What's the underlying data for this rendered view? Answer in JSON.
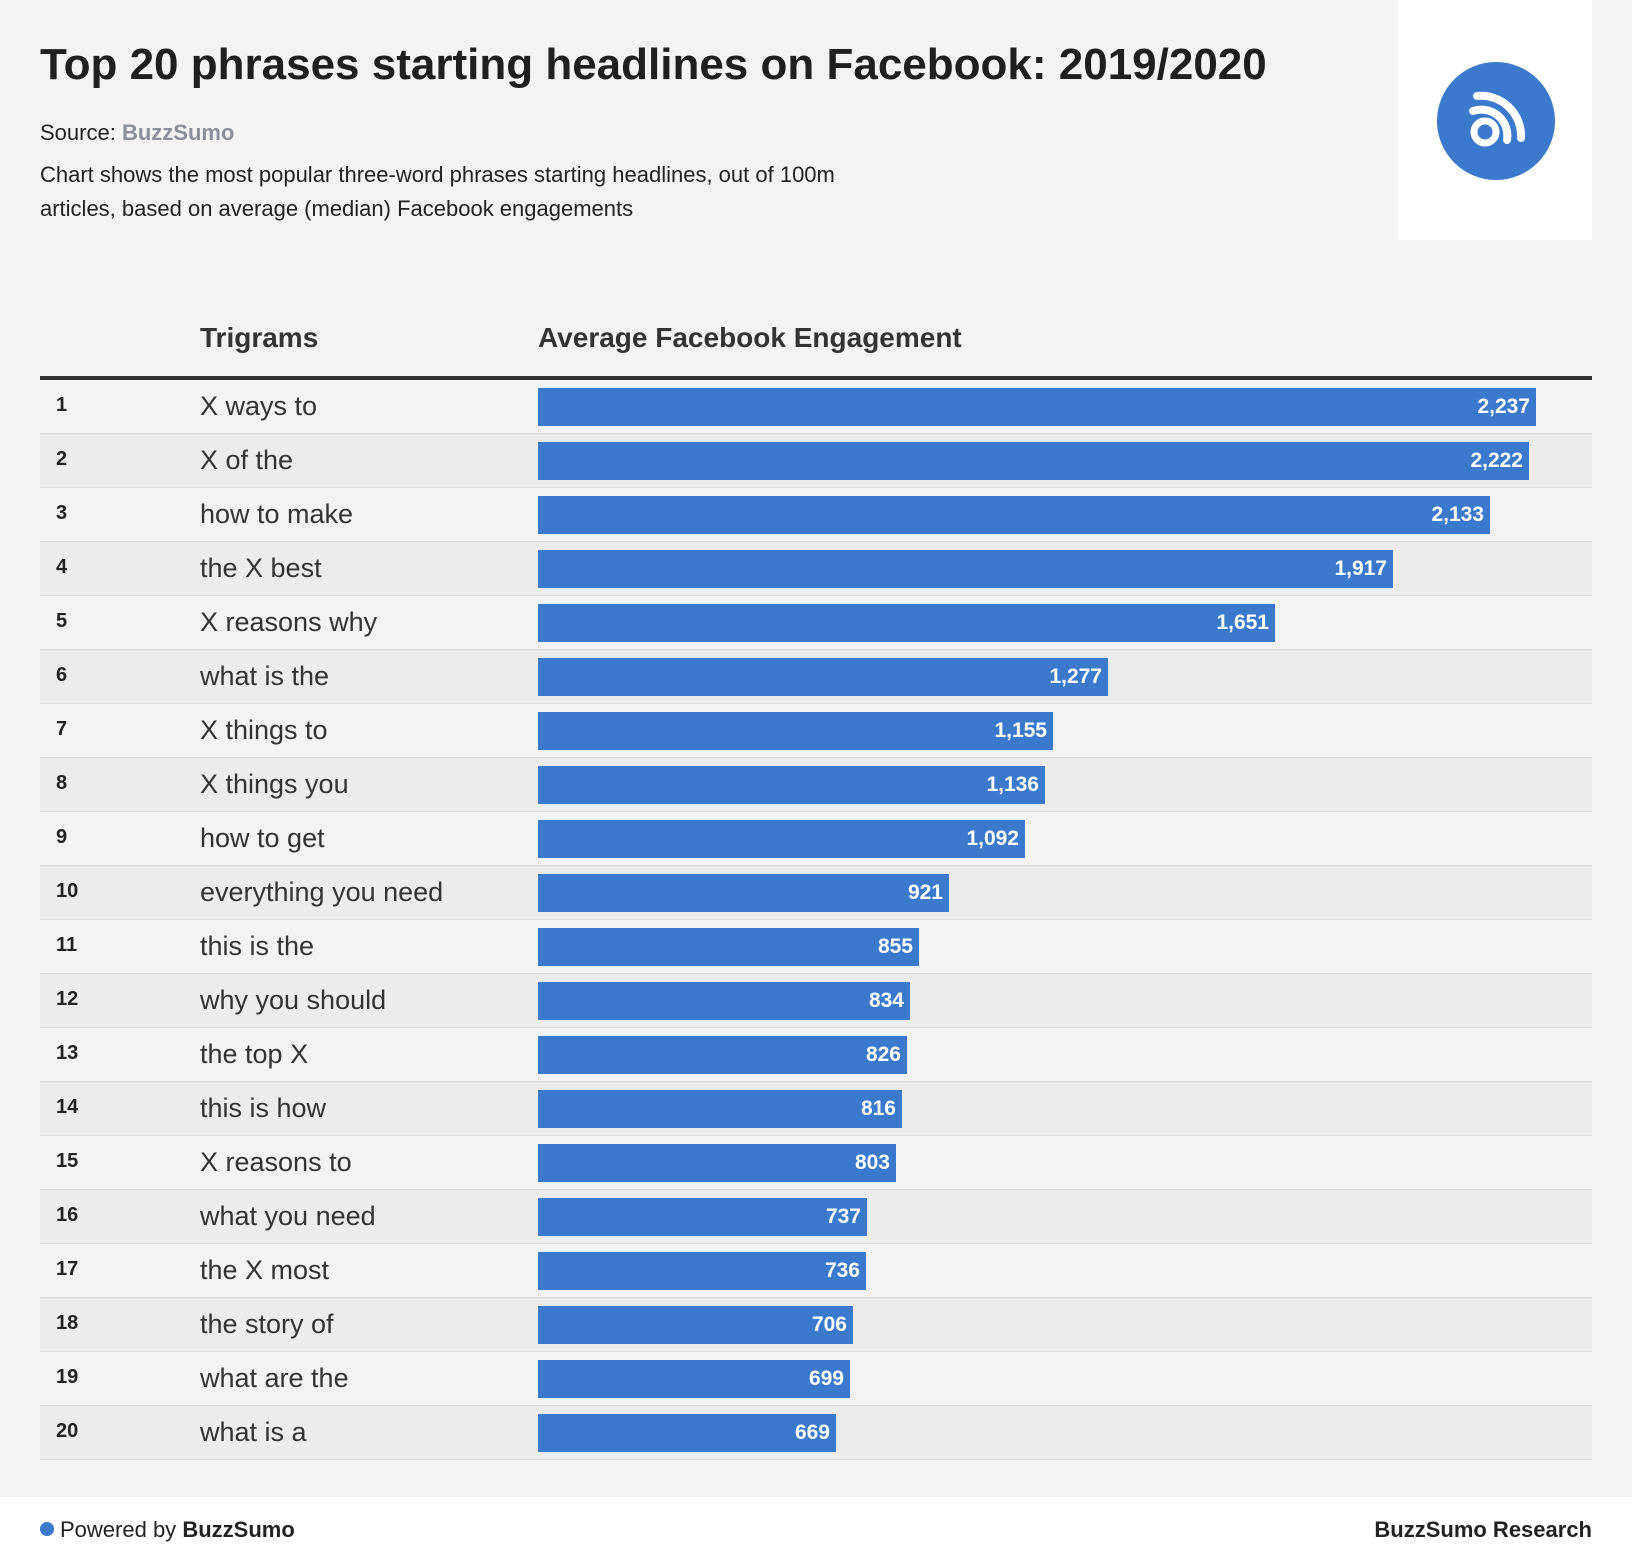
{
  "header": {
    "title": "Top 20 phrases starting headlines on Facebook: 2019/2020",
    "source_label": "Source:",
    "source_name": "BuzzSumo",
    "description": "Chart shows the most popular three-word phrases starting headlines, out of 100m articles, based on average (median) Facebook engagements"
  },
  "logo": {
    "icon": "rss-feed-icon",
    "color": "#3a79cc"
  },
  "columns": {
    "trigrams": "Trigrams",
    "value": "Average Facebook Engagement"
  },
  "chart_data": {
    "type": "bar",
    "orientation": "horizontal",
    "bar_color": "#3a79cc",
    "xlim": [
      0,
      2237
    ],
    "ranks": [
      "1",
      "2",
      "3",
      "4",
      "5",
      "6",
      "7",
      "8",
      "9",
      "10",
      "11",
      "12",
      "13",
      "14",
      "15",
      "16",
      "17",
      "18",
      "19",
      "20"
    ],
    "categories": [
      "X ways to",
      "X of the",
      "how to make",
      "the X best",
      "X reasons why",
      "what is the",
      "X things to",
      "X things you",
      "how to get",
      "everything you need",
      "this is the",
      "why you should",
      "the top X",
      "this is how",
      "X reasons to",
      "what you need",
      "the X most",
      "the story of",
      "what are the",
      "what is a"
    ],
    "values": [
      2237,
      2222,
      2133,
      1917,
      1651,
      1277,
      1155,
      1136,
      1092,
      921,
      855,
      834,
      826,
      816,
      803,
      737,
      736,
      706,
      699,
      669
    ],
    "value_labels": [
      "2,237",
      "2,222",
      "2,133",
      "1,917",
      "1,651",
      "1,277",
      "1,155",
      "1,136",
      "1,092",
      "921",
      "855",
      "834",
      "826",
      "816",
      "803",
      "737",
      "736",
      "706",
      "699",
      "669"
    ]
  },
  "footer": {
    "powered_by": "Powered by",
    "powered_brand": "BuzzSumo",
    "right_text": "BuzzSumo Research"
  }
}
